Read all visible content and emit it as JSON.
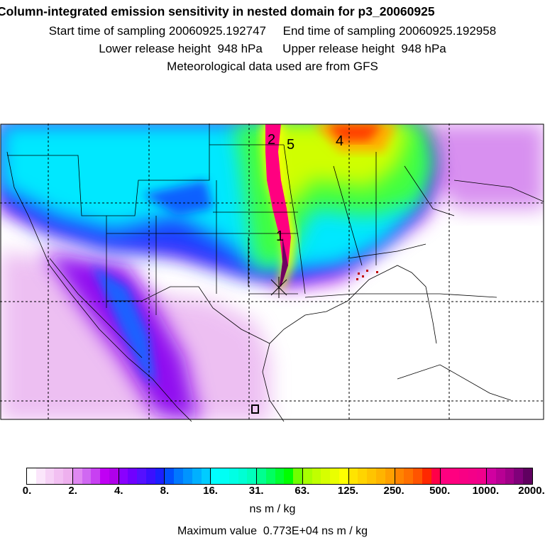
{
  "header": {
    "title": "Column-integrated emission sensitivity in nested domain for p3_20060925",
    "sampling": "Start time of sampling 20060925.192747     End time of sampling 20060925.192958",
    "release_height": "Lower release height  948 hPa      Upper release height  948 hPa",
    "met_data": "Meteorological data used are from GFS"
  },
  "map": {
    "labels": [
      "1",
      "2",
      "4",
      "5"
    ],
    "colors": {
      "plume_core": "#ff0080",
      "background": "#ffffff"
    }
  },
  "colorbar": {
    "tick_labels": [
      "0.",
      "2.",
      "4.",
      "8.",
      "16.",
      "31.",
      "63.",
      "125.",
      "250.",
      "500.",
      "1000.",
      "2000."
    ],
    "segments": [
      [
        "#ffffff",
        "#fbe6fb",
        "#f6d2f6",
        "#f2c0f2",
        "#eeb0ee"
      ],
      [
        "#e088f2",
        "#d068f2",
        "#c840f2",
        "#c000f4",
        "#b000ea"
      ],
      [
        "#8a00ff",
        "#7000ff",
        "#5510ff",
        "#3a10ff",
        "#1a20ff"
      ],
      [
        "#0050ff",
        "#0078ff",
        "#0094ff",
        "#00b0ff",
        "#00ccff"
      ],
      [
        "#00ffff",
        "#00fff4",
        "#00ffe4",
        "#00ffd4",
        "#00ffbc"
      ],
      [
        "#00ff90",
        "#00ff60",
        "#00ff30",
        "#00ff00",
        "#70ff00"
      ],
      [
        "#a8ff00",
        "#c0ff00",
        "#d6ff00",
        "#eaff00",
        "#ffff00"
      ],
      [
        "#ffe400",
        "#ffd400",
        "#ffc400",
        "#ffb400",
        "#ffa000"
      ],
      [
        "#ff8400",
        "#ff7000",
        "#ff5400",
        "#ff2800",
        "#ff0048"
      ],
      [
        "#ff0080",
        "#ff0080",
        "#f80084",
        "#f40088",
        "#f0008c"
      ],
      [
        "#d000a0",
        "#b80094",
        "#a00088",
        "#80007a",
        "#600060"
      ]
    ],
    "unit": "ns m / kg",
    "max_value": "Maximum value  0.773E+04 ns m / kg"
  }
}
